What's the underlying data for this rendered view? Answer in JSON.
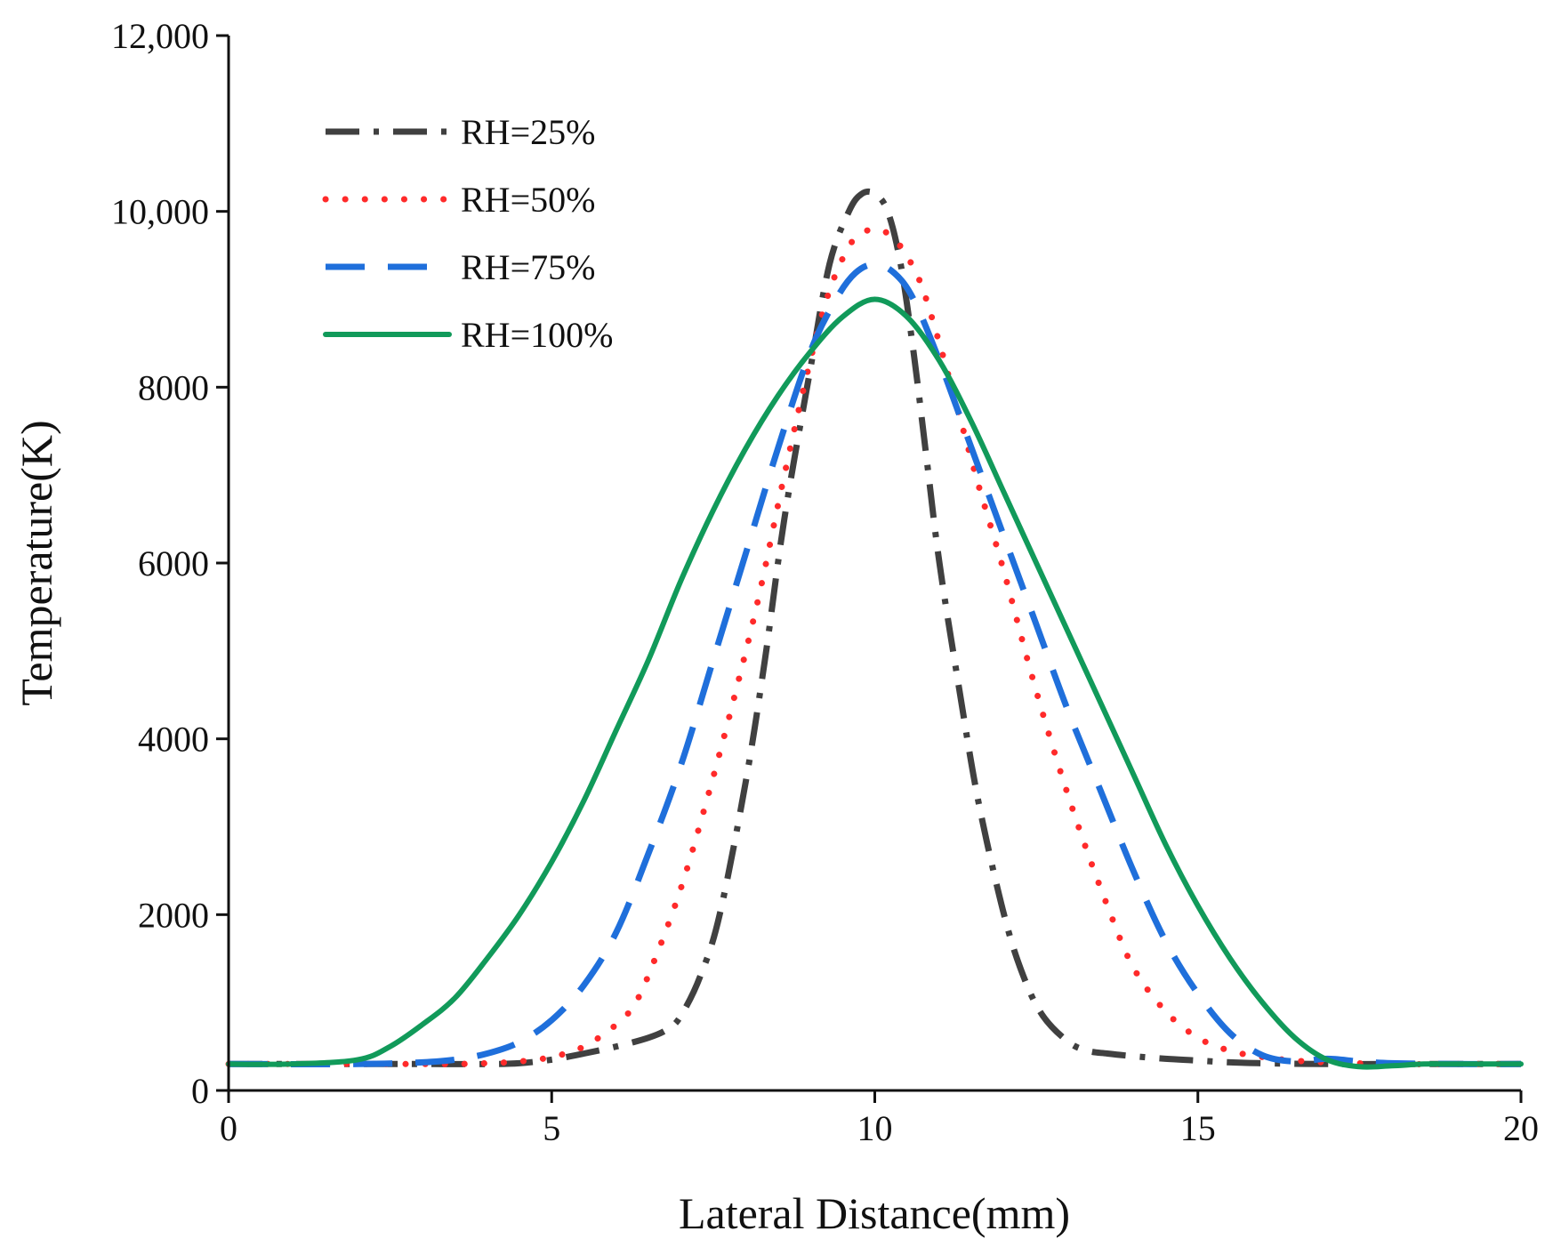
{
  "chart_data": {
    "type": "line",
    "title": "",
    "xlabel": "Lateral Distance(mm)",
    "ylabel": "Temperature(K)",
    "xlim": [
      0,
      20
    ],
    "ylim": [
      0,
      12000
    ],
    "x_ticks": [
      0,
      5,
      10,
      15,
      20
    ],
    "x_tick_labels": [
      "0",
      "5",
      "10",
      "15",
      "20"
    ],
    "y_ticks": [
      0,
      2000,
      4000,
      6000,
      8000,
      10000,
      12000
    ],
    "y_tick_labels": [
      "0",
      "2000",
      "4000",
      "6000",
      "8000",
      "10,000",
      "12,000"
    ],
    "grid": false,
    "legend_position": "top-left",
    "series": [
      {
        "name": "RH=25%",
        "color": "#404040",
        "style": "dash-dot",
        "x": [
          0,
          2,
          3,
          4,
          4.5,
          5,
          5.5,
          6,
          6.5,
          6.8,
          7,
          7.3,
          7.6,
          8,
          8.3,
          8.6,
          9,
          9.3,
          9.6,
          9.8,
          10,
          10.2,
          10.4,
          10.6,
          10.8,
          11,
          11.3,
          11.6,
          12,
          12.3,
          12.6,
          13,
          13.3,
          13.6,
          14,
          14.5,
          15,
          15.5,
          16,
          17,
          18,
          19,
          20
        ],
        "y": [
          300,
          300,
          300,
          300,
          310,
          350,
          420,
          500,
          600,
          700,
          850,
          1300,
          2000,
          3500,
          4900,
          6500,
          8200,
          9400,
          10000,
          10200,
          10200,
          10000,
          9400,
          8400,
          7200,
          6000,
          4600,
          3300,
          2000,
          1300,
          850,
          550,
          450,
          420,
          390,
          360,
          340,
          320,
          310,
          300,
          300,
          300,
          300
        ]
      },
      {
        "name": "RH=50%",
        "color": "#ff2a2a",
        "style": "dotted",
        "x": [
          0,
          2,
          3,
          3.5,
          4,
          4.5,
          5,
          5.5,
          6,
          6.3,
          6.6,
          7,
          7.4,
          7.8,
          8.2,
          8.6,
          9,
          9.3,
          9.6,
          9.8,
          10,
          10.2,
          10.4,
          10.7,
          11,
          11.3,
          11.6,
          12,
          12.4,
          12.8,
          13.2,
          13.6,
          14,
          14.5,
          15,
          15.5,
          16,
          16.5,
          17,
          18,
          19,
          20
        ],
        "y": [
          300,
          300,
          300,
          300,
          310,
          330,
          380,
          500,
          750,
          1000,
          1500,
          2300,
          3300,
          4400,
          5600,
          7000,
          8300,
          9100,
          9600,
          9750,
          9800,
          9750,
          9600,
          9200,
          8500,
          7700,
          6900,
          5900,
          4800,
          3800,
          2900,
          2100,
          1400,
          900,
          600,
          450,
          380,
          340,
          320,
          300,
          300,
          300
        ]
      },
      {
        "name": "RH=75%",
        "color": "#1f6fdb",
        "style": "dashed",
        "x": [
          0,
          2,
          3,
          3.5,
          4,
          4.5,
          5,
          5.5,
          6,
          6.5,
          7,
          7.5,
          8,
          8.5,
          9,
          9.4,
          9.7,
          10,
          10.3,
          10.6,
          11,
          11.5,
          12,
          12.5,
          13,
          13.5,
          14,
          14.5,
          15,
          15.5,
          16,
          16.5,
          17,
          17.5,
          18,
          19,
          20
        ],
        "y": [
          300,
          300,
          320,
          350,
          420,
          550,
          800,
          1200,
          1800,
          2700,
          3700,
          4900,
          6100,
          7300,
          8400,
          9000,
          9300,
          9400,
          9300,
          9000,
          8300,
          7300,
          6300,
          5300,
          4300,
          3400,
          2500,
          1700,
          1100,
          650,
          400,
          330,
          360,
          330,
          310,
          300,
          300
        ]
      },
      {
        "name": "RH=100%",
        "color": "#119a5a",
        "style": "solid",
        "x": [
          0,
          1,
          2,
          2.5,
          3,
          3.5,
          4,
          4.5,
          5,
          5.5,
          6,
          6.5,
          7,
          7.5,
          8,
          8.5,
          9,
          9.5,
          10,
          10.5,
          11,
          11.5,
          12,
          12.5,
          13,
          13.5,
          14,
          14.5,
          15,
          15.5,
          16,
          16.5,
          17,
          17.5,
          18,
          18.5,
          19,
          20
        ],
        "y": [
          300,
          300,
          350,
          500,
          750,
          1050,
          1500,
          2000,
          2600,
          3300,
          4100,
          4900,
          5800,
          6600,
          7300,
          7900,
          8400,
          8800,
          9000,
          8800,
          8300,
          7600,
          6800,
          6000,
          5200,
          4400,
          3600,
          2800,
          2100,
          1500,
          1000,
          600,
          350,
          270,
          280,
          300,
          300,
          300
        ]
      }
    ]
  }
}
